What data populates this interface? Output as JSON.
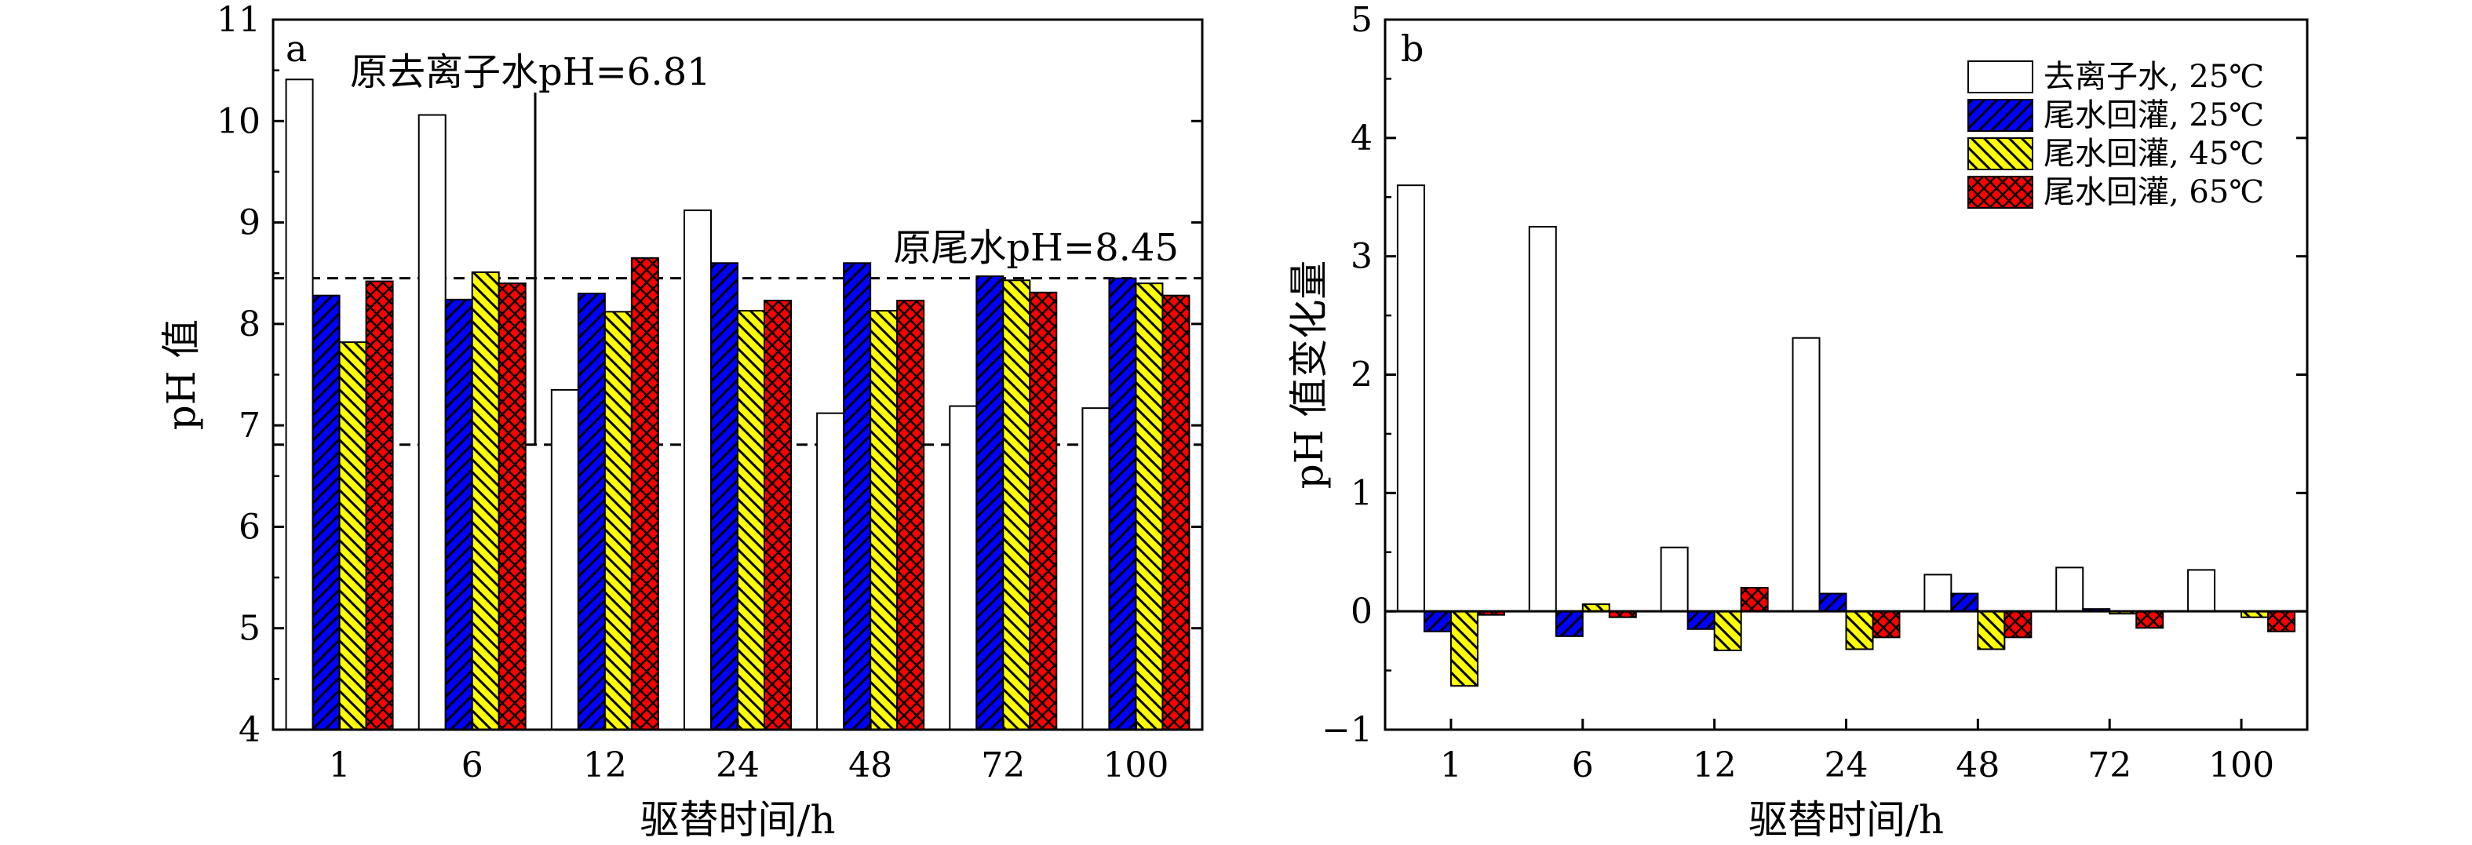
{
  "colors": {
    "deionized_25": "#ffffff",
    "tail_25": "#0000ff",
    "tail_45": "#ffff00",
    "tail_65": "#ff0000",
    "edge": "#000000"
  },
  "patterns": [
    "none",
    "diagonal-hatch",
    "reverse-diagonal-hatch",
    "cross-hatch"
  ],
  "chart_data": [
    {
      "type": "bar",
      "panel": "a",
      "xlabel": "驱替时间/h",
      "ylabel": "pH 值",
      "ylim": [
        4,
        11
      ],
      "yticks": [
        "4",
        "5",
        "6",
        "7",
        "8",
        "9",
        "10",
        "11"
      ],
      "categories": [
        "1",
        "6",
        "12",
        "24",
        "48",
        "72",
        "100"
      ],
      "series": [
        {
          "values": [
            10.41,
            10.06,
            7.35,
            9.12,
            7.12,
            7.19,
            7.17
          ]
        },
        {
          "values": [
            8.28,
            8.24,
            8.3,
            8.6,
            8.6,
            8.47,
            8.45
          ]
        },
        {
          "values": [
            7.82,
            8.51,
            8.12,
            8.13,
            8.13,
            8.43,
            8.4
          ]
        },
        {
          "values": [
            8.42,
            8.4,
            8.65,
            8.23,
            8.23,
            8.31,
            8.28
          ]
        }
      ],
      "reference_lines": [
        {
          "value": 6.81,
          "label": "原去离子水pH=6.81"
        },
        {
          "value": 8.45,
          "label": "原尾水pH=8.45"
        }
      ]
    },
    {
      "type": "bar",
      "panel": "b",
      "xlabel": "驱替时间/h",
      "ylabel": "pH 值变化量",
      "ylim": [
        -1,
        5
      ],
      "yticks": [
        "−1",
        "0",
        "1",
        "2",
        "3",
        "4",
        "5"
      ],
      "categories": [
        "1",
        "6",
        "12",
        "24",
        "48",
        "72",
        "100"
      ],
      "zero_line": true,
      "legend_position": "top-right",
      "series": [
        {
          "name": "去离子水, 25℃",
          "values": [
            3.6,
            3.25,
            0.54,
            2.31,
            0.31,
            0.37,
            0.35
          ]
        },
        {
          "name": "尾水回灌, 25℃",
          "values": [
            -0.17,
            -0.21,
            -0.15,
            0.15,
            0.15,
            0.02,
            0.0
          ]
        },
        {
          "name": "尾水回灌, 45℃",
          "values": [
            -0.63,
            0.06,
            -0.33,
            -0.32,
            -0.32,
            -0.02,
            -0.05
          ]
        },
        {
          "name": "尾水回灌, 65℃",
          "values": [
            -0.03,
            -0.05,
            0.2,
            -0.22,
            -0.22,
            -0.14,
            -0.17
          ]
        }
      ]
    }
  ]
}
